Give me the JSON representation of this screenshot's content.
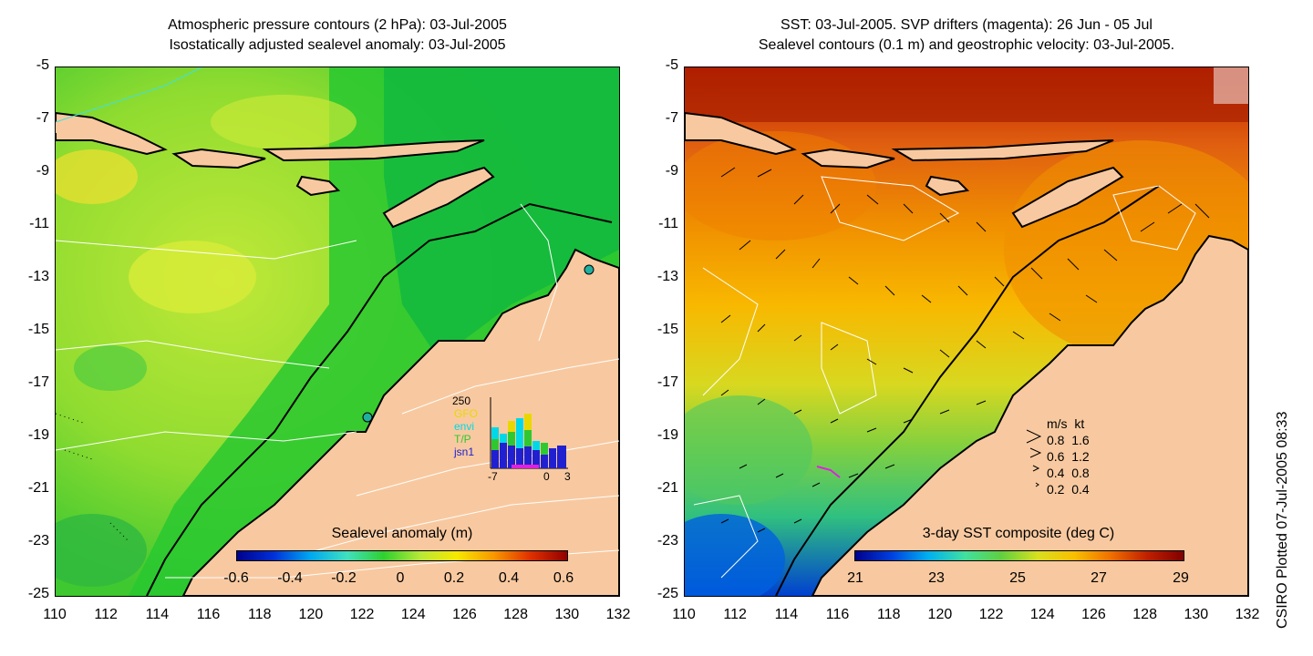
{
  "left_panel": {
    "title_line1": "Atmospheric pressure contours (2 hPa): 03-Jul-2005",
    "title_line2": "Isostatically adjusted sealevel anomaly: 03-Jul-2005",
    "colorbar": {
      "title": "Sealevel anomaly (m)",
      "ticks": [
        "-0.6",
        "-0.4",
        "-0.2",
        "0",
        "0.2",
        "0.4",
        "0.6"
      ]
    },
    "inset": {
      "ymax_label": "250",
      "satellites": [
        {
          "name": "GFO",
          "color": "#e8d800"
        },
        {
          "name": "envi",
          "color": "#00d8e8"
        },
        {
          "name": "T/P",
          "color": "#30c830"
        },
        {
          "name": "jsn1",
          "color": "#2020d0"
        }
      ],
      "x_ticks": [
        "-7",
        "0",
        "3"
      ]
    }
  },
  "right_panel": {
    "title_line1": "SST: 03-Jul-2005. SVP drifters (magenta): 26 Jun - 05 Jul",
    "title_line2": "Sealevel contours (0.1 m) and geostrophic velocity: 03-Jul-2005.",
    "colorbar": {
      "title": "3-day SST composite (deg C)",
      "ticks": [
        "21",
        "23",
        "25",
        "27",
        "29"
      ]
    },
    "velocity_legend": {
      "header_ms": "m/s",
      "header_kt": "kt",
      "rows": [
        {
          "ms": "0.8",
          "kt": "1.6"
        },
        {
          "ms": "0.6",
          "kt": "1.2"
        },
        {
          "ms": "0.4",
          "kt": "0.8"
        },
        {
          "ms": "0.2",
          "kt": "0.4"
        }
      ]
    }
  },
  "axes": {
    "lat_ticks": [
      "-5",
      "-7",
      "-9",
      "-11",
      "-13",
      "-15",
      "-17",
      "-19",
      "-21",
      "-23",
      "-25"
    ],
    "lon_ticks": [
      "110",
      "112",
      "114",
      "116",
      "118",
      "120",
      "122",
      "124",
      "126",
      "128",
      "130",
      "132"
    ]
  },
  "side_note": "CSIRO Plotted 07-Jul-2005 08:33",
  "colors": {
    "land": "#f8c9a0",
    "sla_colormap": [
      "#00008c",
      "#0030d8",
      "#00a8f0",
      "#40e0c0",
      "#30d030",
      "#b8e838",
      "#f8e800",
      "#f89800",
      "#e03000",
      "#900000"
    ],
    "sst_colormap": [
      "#00008c",
      "#0040e0",
      "#00b0f0",
      "#40e0a0",
      "#60d040",
      "#d8e020",
      "#f8c000",
      "#f07000",
      "#c02000",
      "#800000"
    ]
  }
}
